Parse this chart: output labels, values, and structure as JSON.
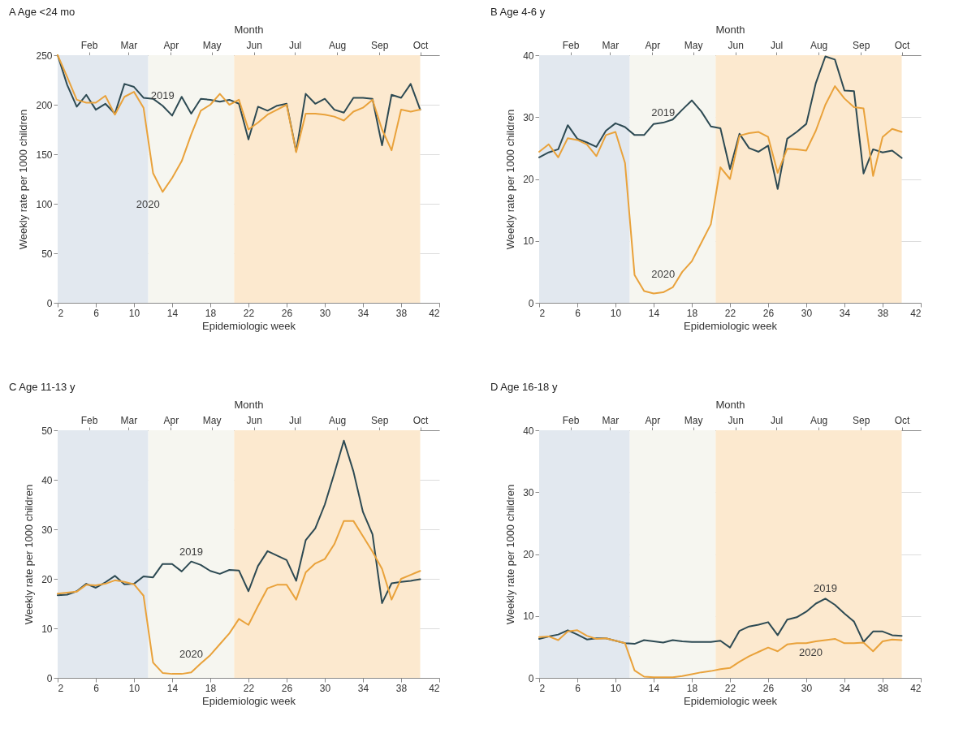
{
  "chart_data": [
    {
      "type": "line",
      "title": "A Age <24 mo",
      "xlabel": "Epidemiologic week",
      "x2label": "Month",
      "ylabel": "Weekly rate per 1000 children",
      "x": [
        2,
        3,
        4,
        5,
        6,
        7,
        8,
        9,
        10,
        11,
        12,
        13,
        14,
        15,
        16,
        17,
        18,
        19,
        20,
        21,
        22,
        23,
        24,
        25,
        26,
        27,
        28,
        29,
        30,
        31,
        32,
        33,
        34,
        35,
        36,
        37,
        38,
        39,
        40
      ],
      "xlim": [
        2,
        42
      ],
      "xticks": [
        2,
        6,
        10,
        14,
        18,
        22,
        26,
        30,
        34,
        38,
        42
      ],
      "x2lim": [
        "--01-09",
        "--10-15"
      ],
      "x2ticks": [
        {
          "value": "--02-01",
          "label": "Feb"
        },
        {
          "value": "--03-01",
          "label": "Mar"
        },
        {
          "value": "--04-01",
          "label": "Apr"
        },
        {
          "value": "--05-01",
          "label": "May"
        },
        {
          "value": "--06-01",
          "label": "Jun"
        },
        {
          "value": "--07-01",
          "label": "Jul"
        },
        {
          "value": "--08-01",
          "label": "Aug"
        },
        {
          "value": "--09-01",
          "label": "Sep"
        },
        {
          "value": "--10-01",
          "label": "Oct"
        }
      ],
      "ylim": [
        0,
        250
      ],
      "yticks": [
        0,
        50,
        100,
        150,
        200,
        250
      ],
      "grid": "y",
      "bands": [
        {
          "axis": "x",
          "from": 2,
          "to": 11.5,
          "color": "#e2e8ef"
        },
        {
          "axis": "x",
          "from": 11.5,
          "to": 20.5,
          "color": "#f6f6f0"
        },
        {
          "axis": "x",
          "from": 20.5,
          "to": 40,
          "color": "#fce9cf"
        }
      ],
      "series": [
        {
          "name": "2019",
          "color": "#2d4a53",
          "values": [
            250,
            220,
            198,
            210,
            195,
            201,
            191,
            221,
            218,
            207,
            206,
            199,
            189,
            208,
            191,
            206,
            205,
            203,
            205,
            201,
            165,
            198,
            194,
            199,
            201,
            153,
            211,
            201,
            206,
            195,
            192,
            207,
            207,
            206,
            159,
            210,
            207,
            221,
            195
          ]
        },
        {
          "name": "2020",
          "color": "#e9a23b",
          "values": [
            250,
            228,
            205,
            202,
            202,
            209,
            190,
            208,
            213,
            197,
            131,
            112,
            126,
            143,
            170,
            194,
            200,
            211,
            200,
            205,
            175,
            182,
            190,
            195,
            200,
            152,
            191,
            191,
            190,
            188,
            184,
            193,
            197,
            205,
            175,
            154,
            195,
            193,
            195
          ]
        }
      ]
    },
    {
      "type": "line",
      "title": "B Age 4-6 y",
      "xlabel": "Epidemiologic week",
      "x2label": "Month",
      "ylabel": "Weekly rate per 1000 children",
      "x": [
        2,
        3,
        4,
        5,
        6,
        7,
        8,
        9,
        10,
        11,
        12,
        13,
        14,
        15,
        16,
        17,
        18,
        19,
        20,
        21,
        22,
        23,
        24,
        25,
        26,
        27,
        28,
        29,
        30,
        31,
        32,
        33,
        34,
        35,
        36,
        37,
        38,
        39,
        40
      ],
      "xlim": [
        2,
        42
      ],
      "xticks": [
        2,
        6,
        10,
        14,
        18,
        22,
        26,
        30,
        34,
        38,
        42
      ],
      "x2lim": [
        "--01-09",
        "--10-15"
      ],
      "x2ticks": [
        {
          "value": "--02-01",
          "label": "Feb"
        },
        {
          "value": "--03-01",
          "label": "Mar"
        },
        {
          "value": "--04-01",
          "label": "Apr"
        },
        {
          "value": "--05-01",
          "label": "May"
        },
        {
          "value": "--06-01",
          "label": "Jun"
        },
        {
          "value": "--07-01",
          "label": "Jul"
        },
        {
          "value": "--08-01",
          "label": "Aug"
        },
        {
          "value": "--09-01",
          "label": "Sep"
        },
        {
          "value": "--10-01",
          "label": "Oct"
        }
      ],
      "ylim": [
        0,
        40
      ],
      "yticks": [
        0,
        10,
        20,
        30,
        40
      ],
      "grid": "y",
      "bands": [
        {
          "axis": "x",
          "from": 2,
          "to": 11.5,
          "color": "#e2e8ef"
        },
        {
          "axis": "x",
          "from": 11.5,
          "to": 20.5,
          "color": "#f6f6f0"
        },
        {
          "axis": "x",
          "from": 20.5,
          "to": 40,
          "color": "#fce9cf"
        }
      ],
      "series": [
        {
          "name": "2019",
          "color": "#2d4a53",
          "values": [
            23.5,
            24.3,
            24.8,
            28.7,
            26.5,
            25.9,
            25.2,
            27.8,
            29,
            28.4,
            27.1,
            27.1,
            28.9,
            29.1,
            29.6,
            31.2,
            32.7,
            30.9,
            28.5,
            28.2,
            21.6,
            27.3,
            25,
            24.4,
            25.4,
            18.4,
            26.5,
            27.6,
            28.9,
            35.5,
            39.8,
            39.3,
            34.3,
            34.2,
            20.9,
            24.8,
            24.3,
            24.6,
            23.4
          ]
        },
        {
          "name": "2020",
          "color": "#e9a23b",
          "values": [
            24.4,
            25.6,
            23.5,
            26.6,
            26.3,
            25.6,
            23.7,
            27.1,
            27.6,
            22.6,
            4.5,
            1.9,
            1.5,
            1.7,
            2.5,
            5,
            6.7,
            9.7,
            12.7,
            21.9,
            20,
            27,
            27.4,
            27.6,
            26.8,
            21,
            24.9,
            24.8,
            24.6,
            27.8,
            32,
            35,
            33,
            31.6,
            31.4,
            20.5,
            26.8,
            28.1,
            27.6
          ]
        }
      ]
    },
    {
      "type": "line",
      "title": "C Age 11-13 y",
      "xlabel": "Epidemiologic week",
      "x2label": "Month",
      "ylabel": "Weekly rate per 1000 children",
      "x": [
        2,
        3,
        4,
        5,
        6,
        7,
        8,
        9,
        10,
        11,
        12,
        13,
        14,
        15,
        16,
        17,
        18,
        19,
        20,
        21,
        22,
        23,
        24,
        25,
        26,
        27,
        28,
        29,
        30,
        31,
        32,
        33,
        34,
        35,
        36,
        37,
        38,
        39,
        40
      ],
      "xlim": [
        2,
        42
      ],
      "xticks": [
        2,
        6,
        10,
        14,
        18,
        22,
        26,
        30,
        34,
        38,
        42
      ],
      "x2lim": [
        "--01-09",
        "--10-15"
      ],
      "x2ticks": [
        {
          "value": "--02-01",
          "label": "Feb"
        },
        {
          "value": "--03-01",
          "label": "Mar"
        },
        {
          "value": "--04-01",
          "label": "Apr"
        },
        {
          "value": "--05-01",
          "label": "May"
        },
        {
          "value": "--06-01",
          "label": "Jun"
        },
        {
          "value": "--07-01",
          "label": "Jul"
        },
        {
          "value": "--08-01",
          "label": "Aug"
        },
        {
          "value": "--09-01",
          "label": "Sep"
        },
        {
          "value": "--10-01",
          "label": "Oct"
        }
      ],
      "ylim": [
        0,
        50
      ],
      "yticks": [
        0,
        10,
        20,
        30,
        40,
        50
      ],
      "grid": "y",
      "bands": [
        {
          "axis": "x",
          "from": 2,
          "to": 11.5,
          "color": "#e2e8ef"
        },
        {
          "axis": "x",
          "from": 11.5,
          "to": 20.5,
          "color": "#f6f6f0"
        },
        {
          "axis": "x",
          "from": 20.5,
          "to": 40,
          "color": "#fce9cf"
        }
      ],
      "series": [
        {
          "name": "2019",
          "color": "#2d4a53",
          "values": [
            16.7,
            16.8,
            17.5,
            19,
            18.2,
            19.3,
            20.6,
            18.9,
            19,
            20.5,
            20.3,
            23,
            23,
            21.5,
            23.5,
            22.8,
            21.6,
            21,
            21.8,
            21.7,
            17.5,
            22.6,
            25.6,
            24.7,
            23.8,
            19.6,
            27.8,
            30.2,
            35,
            41.3,
            47.9,
            41.7,
            33.5,
            29,
            15.1,
            19.1,
            19.4,
            19.6,
            19.9
          ]
        },
        {
          "name": "2020",
          "color": "#e9a23b",
          "values": [
            17,
            17.2,
            17.4,
            18.8,
            18.7,
            19,
            19.7,
            19.4,
            18.9,
            16.6,
            3.1,
            1,
            0.8,
            0.8,
            1.1,
            2.9,
            4.6,
            6.8,
            9,
            11.9,
            10.7,
            14.5,
            18.1,
            18.8,
            18.8,
            15.8,
            21.3,
            23.1,
            24,
            27,
            31.7,
            31.7,
            28.6,
            25.5,
            22,
            15.8,
            20,
            20.8,
            21.6
          ]
        }
      ]
    },
    {
      "type": "line",
      "title": "D Age 16-18 y",
      "xlabel": "Epidemiologic week",
      "x2label": "Month",
      "ylabel": "Weekly rate per 1000 children",
      "x": [
        2,
        3,
        4,
        5,
        6,
        7,
        8,
        9,
        10,
        11,
        12,
        13,
        14,
        15,
        16,
        17,
        18,
        19,
        20,
        21,
        22,
        23,
        24,
        25,
        26,
        27,
        28,
        29,
        30,
        31,
        32,
        33,
        34,
        35,
        36,
        37,
        38,
        39,
        40
      ],
      "xlim": [
        2,
        42
      ],
      "xticks": [
        2,
        6,
        10,
        14,
        18,
        22,
        26,
        30,
        34,
        38,
        42
      ],
      "x2lim": [
        "--01-09",
        "--10-15"
      ],
      "x2ticks": [
        {
          "value": "--02-01",
          "label": "Feb"
        },
        {
          "value": "--03-01",
          "label": "Mar"
        },
        {
          "value": "--04-01",
          "label": "Apr"
        },
        {
          "value": "--05-01",
          "label": "May"
        },
        {
          "value": "--06-01",
          "label": "Jun"
        },
        {
          "value": "--07-01",
          "label": "Jul"
        },
        {
          "value": "--08-01",
          "label": "Aug"
        },
        {
          "value": "--09-01",
          "label": "Sep"
        },
        {
          "value": "--10-01",
          "label": "Oct"
        }
      ],
      "ylim": [
        0,
        40
      ],
      "yticks": [
        0,
        10,
        20,
        30,
        40
      ],
      "grid": "y",
      "bands": [
        {
          "axis": "x",
          "from": 2,
          "to": 11.5,
          "color": "#e2e8ef"
        },
        {
          "axis": "x",
          "from": 11.5,
          "to": 20.5,
          "color": "#f6f6f0"
        },
        {
          "axis": "x",
          "from": 20.5,
          "to": 40,
          "color": "#fce9cf"
        }
      ],
      "series": [
        {
          "name": "2019",
          "color": "#2d4a53",
          "values": [
            6.3,
            6.7,
            7,
            7.7,
            7,
            6.2,
            6.4,
            6.4,
            6,
            5.6,
            5.5,
            6.1,
            5.9,
            5.7,
            6.1,
            5.9,
            5.8,
            5.8,
            5.8,
            6,
            4.9,
            7.6,
            8.3,
            8.6,
            9,
            6.9,
            9.4,
            9.8,
            10.7,
            12,
            12.8,
            11.8,
            10.4,
            9.1,
            5.8,
            7.5,
            7.5,
            6.9,
            6.8
          ]
        },
        {
          "name": "2020",
          "color": "#e9a23b",
          "values": [
            6.6,
            6.7,
            6.1,
            7.5,
            7.7,
            6.8,
            6.3,
            6.4,
            6,
            5.6,
            1.2,
            0.2,
            0.1,
            0.1,
            0.1,
            0.3,
            0.6,
            0.9,
            1.1,
            1.4,
            1.6,
            2.6,
            3.5,
            4.2,
            4.9,
            4.3,
            5.4,
            5.6,
            5.6,
            5.9,
            6.1,
            6.3,
            5.6,
            5.6,
            5.7,
            4.3,
            5.9,
            6.2,
            6.1
          ]
        }
      ]
    }
  ]
}
